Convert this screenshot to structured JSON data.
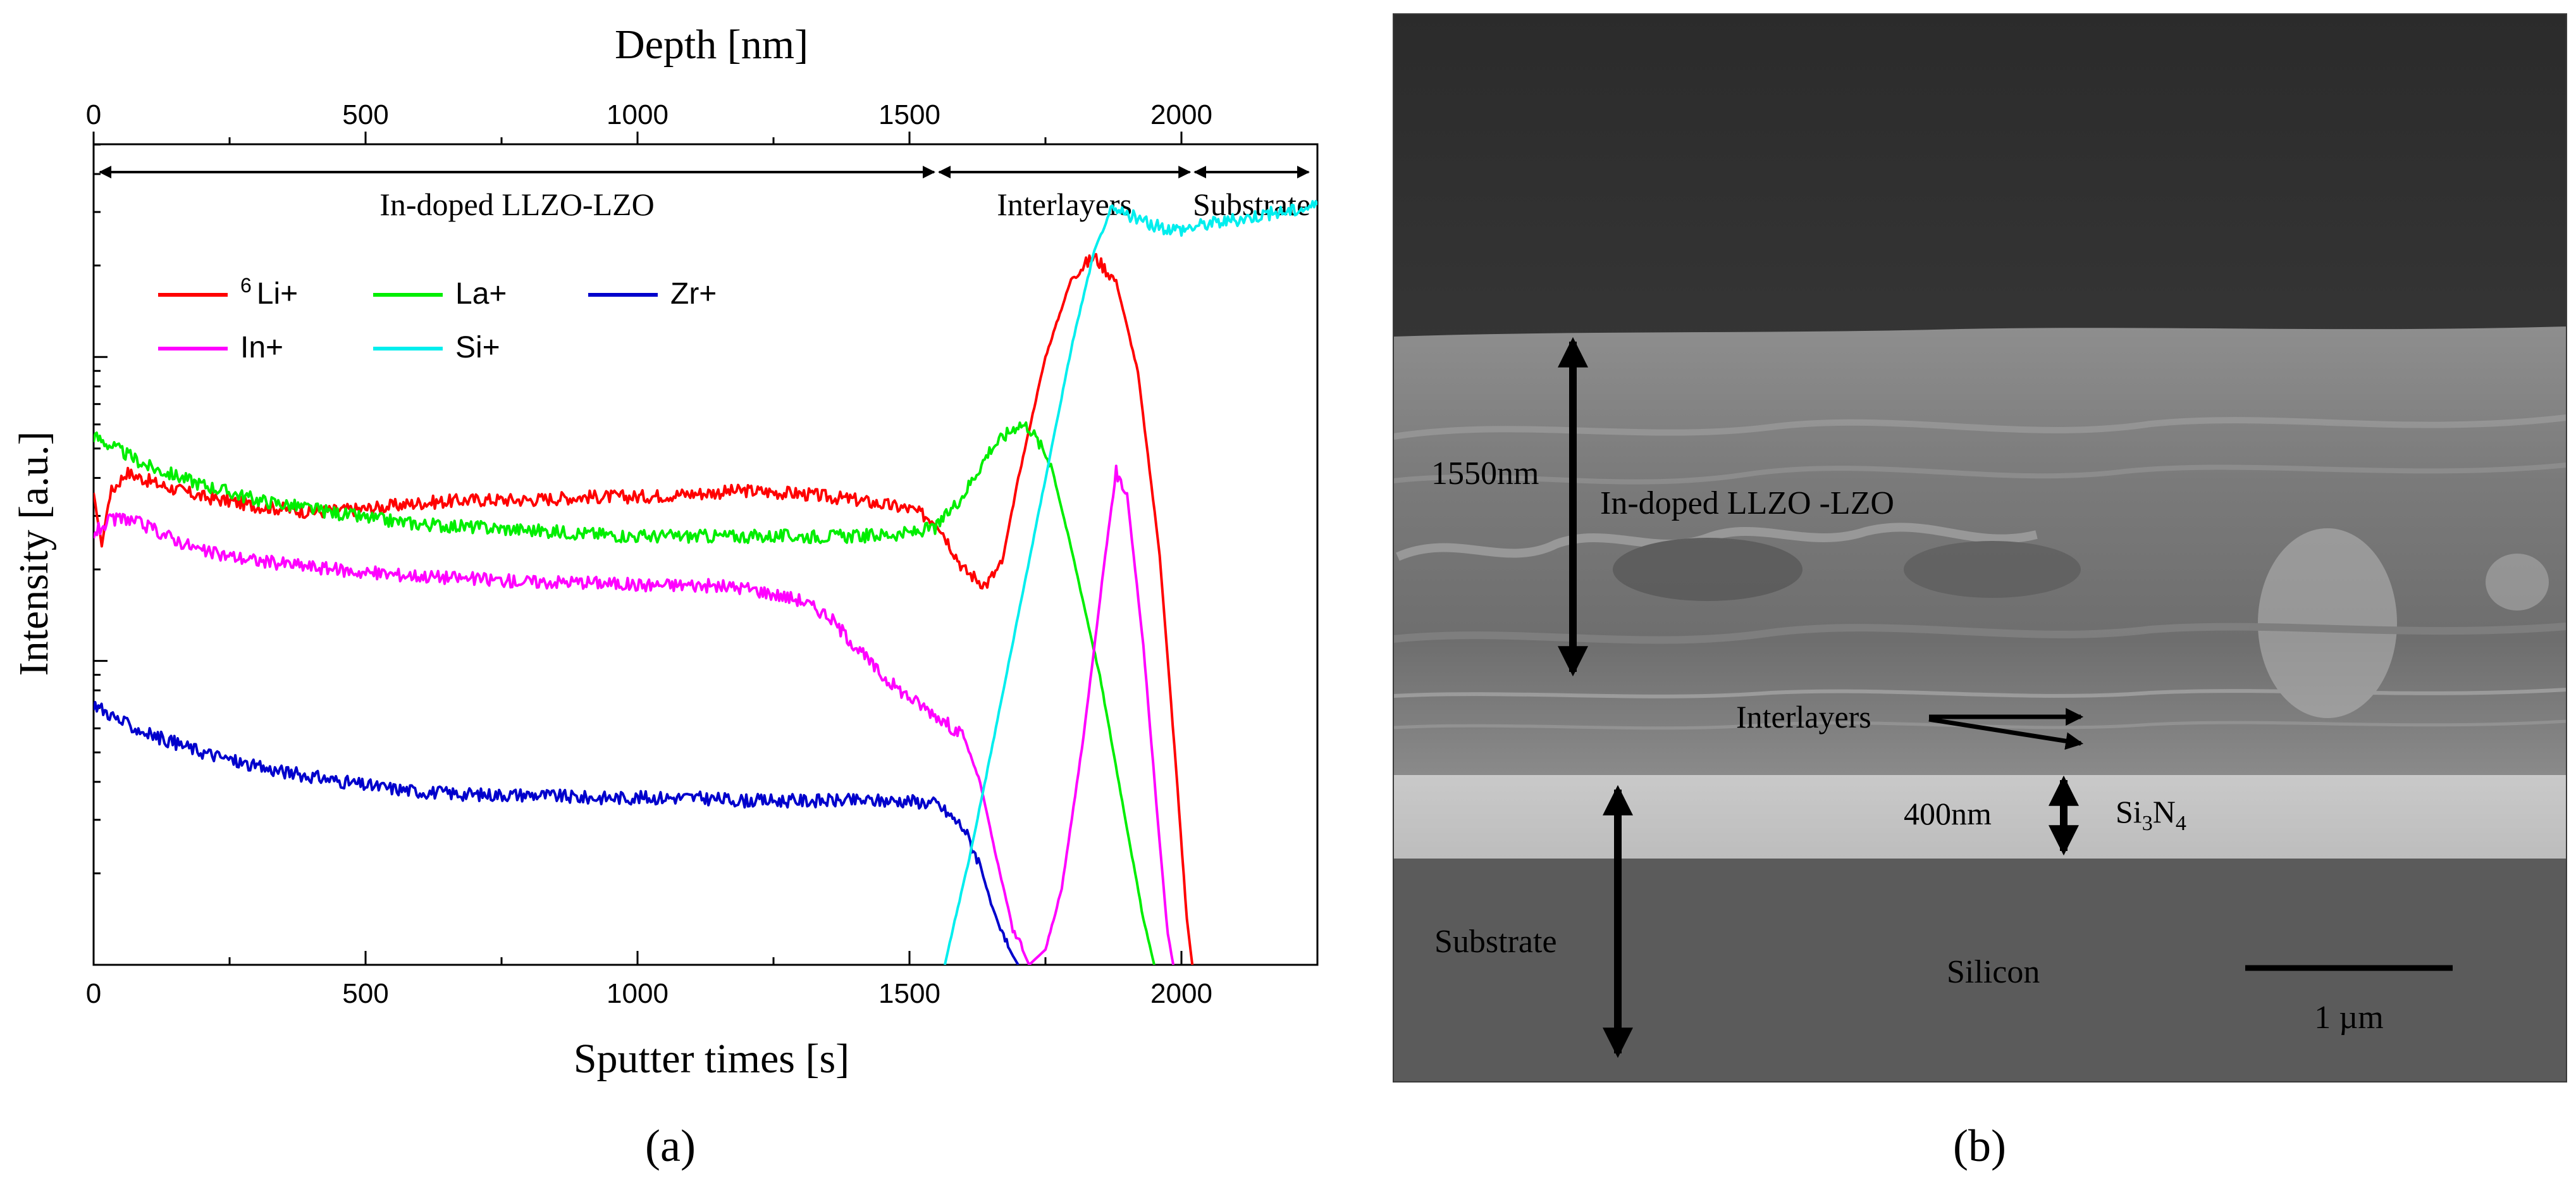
{
  "panel_a": {
    "caption": "(a)",
    "chart_data": {
      "type": "line",
      "xlabel": "Sputter times [s]",
      "ylabel": "Intensity [a.u.]",
      "top_axis_label": "Depth [nm]",
      "xlim": [
        0,
        2250
      ],
      "ylim_log10_decades": [
        0,
        2.7
      ],
      "x_ticks": [
        0,
        500,
        1000,
        1500,
        2000
      ],
      "top_ticks": [
        0,
        500,
        1000,
        1500,
        2000
      ],
      "top_axis_range_nm": [
        0,
        2250
      ],
      "y_tick_labels_shown": false,
      "legend_position": "upper-left",
      "regions": [
        {
          "label": "In-doped LLZO-LZO",
          "start_nm": 0,
          "end_nm": 1550
        },
        {
          "label": "Interlayers",
          "start_nm": 1550,
          "end_nm": 2020
        },
        {
          "label": "Substrate",
          "start_nm": 2020,
          "end_nm": 2250
        }
      ],
      "series": [
        {
          "name": "6Li+",
          "label_sup": "6",
          "label_main": "Li+",
          "color": "#ff0000",
          "x": [
            0,
            15,
            30,
            60,
            120,
            200,
            300,
            400,
            500,
            600,
            700,
            800,
            900,
            1000,
            1100,
            1200,
            1300,
            1400,
            1500,
            1550,
            1600,
            1640,
            1670,
            1700,
            1750,
            1800,
            1840,
            1880,
            1920,
            1960,
            1990,
            2010,
            2020
          ],
          "y": [
            1.55,
            1.38,
            1.55,
            1.62,
            1.58,
            1.54,
            1.51,
            1.49,
            1.5,
            1.52,
            1.53,
            1.53,
            1.54,
            1.54,
            1.55,
            1.56,
            1.55,
            1.53,
            1.5,
            1.46,
            1.3,
            1.25,
            1.32,
            1.6,
            2.0,
            2.27,
            2.33,
            2.25,
            1.95,
            1.35,
            0.65,
            0.15,
            0
          ]
        },
        {
          "name": "La+",
          "label_sup": "",
          "label_main": "La+",
          "color": "#00ee00",
          "x": [
            0,
            20,
            100,
            200,
            300,
            400,
            500,
            600,
            700,
            800,
            900,
            1000,
            1100,
            1200,
            1300,
            1400,
            1500,
            1550,
            1600,
            1650,
            1700,
            1720,
            1760,
            1800,
            1850,
            1900,
            1930,
            1950
          ],
          "y": [
            1.74,
            1.72,
            1.64,
            1.58,
            1.53,
            1.5,
            1.47,
            1.45,
            1.44,
            1.43,
            1.42,
            1.41,
            1.41,
            1.41,
            1.41,
            1.41,
            1.42,
            1.44,
            1.55,
            1.7,
            1.78,
            1.77,
            1.65,
            1.35,
            0.95,
            0.45,
            0.15,
            0
          ]
        },
        {
          "name": "Zr+",
          "label_sup": "",
          "label_main": "Zr+",
          "color": "#0000cc",
          "x": [
            0,
            50,
            100,
            200,
            300,
            400,
            500,
            600,
            700,
            800,
            900,
            1000,
            1100,
            1200,
            1300,
            1400,
            1500,
            1550,
            1600,
            1630,
            1650,
            1670,
            1690,
            1700
          ],
          "y": [
            0.86,
            0.8,
            0.76,
            0.7,
            0.65,
            0.62,
            0.59,
            0.57,
            0.56,
            0.56,
            0.55,
            0.55,
            0.55,
            0.54,
            0.54,
            0.54,
            0.54,
            0.53,
            0.45,
            0.33,
            0.2,
            0.1,
            0.03,
            0
          ]
        },
        {
          "name": "In+",
          "label_sup": "",
          "label_main": "In+",
          "color": "#ff00ff",
          "x": [
            0,
            30,
            60,
            100,
            150,
            200,
            300,
            400,
            500,
            600,
            700,
            800,
            900,
            1000,
            1100,
            1200,
            1300,
            1350,
            1400,
            1450,
            1500,
            1550,
            1600,
            1630,
            1660,
            1690,
            1720,
            1750,
            1780,
            1820,
            1860,
            1880,
            1900,
            1930,
            1960,
            1975,
            1985
          ],
          "y": [
            1.42,
            1.46,
            1.47,
            1.44,
            1.4,
            1.36,
            1.33,
            1.31,
            1.29,
            1.28,
            1.27,
            1.26,
            1.26,
            1.25,
            1.25,
            1.24,
            1.2,
            1.15,
            1.05,
            0.95,
            0.88,
            0.82,
            0.75,
            0.6,
            0.35,
            0.12,
            0,
            0.05,
            0.25,
            0.75,
            1.35,
            1.62,
            1.55,
            1.05,
            0.4,
            0.1,
            0
          ]
        },
        {
          "name": "Si+",
          "label_sup": "",
          "label_main": "Si+",
          "color": "#00eeee",
          "x": [
            1565,
            1580,
            1610,
            1650,
            1700,
            1750,
            1800,
            1840,
            1870,
            1900,
            1950,
            2000,
            2050,
            2100,
            2150,
            2200,
            2250
          ],
          "y": [
            0,
            0.12,
            0.35,
            0.7,
            1.15,
            1.6,
            2.05,
            2.35,
            2.48,
            2.47,
            2.43,
            2.42,
            2.44,
            2.45,
            2.47,
            2.48,
            2.5
          ]
        }
      ]
    }
  },
  "panel_b": {
    "caption": "(b)",
    "labels": {
      "film_thickness": "1550nm",
      "film_material": "In-doped LLZO -LZO",
      "interlayers": "Interlayers",
      "nitride_thickness": "400nm",
      "nitride_formula": {
        "el1": "Si",
        "sub1": "3",
        "el2": "N",
        "sub2": "4"
      },
      "substrate": "Substrate",
      "substrate_material": "Silicon",
      "scale_bar": "1 µm"
    }
  }
}
